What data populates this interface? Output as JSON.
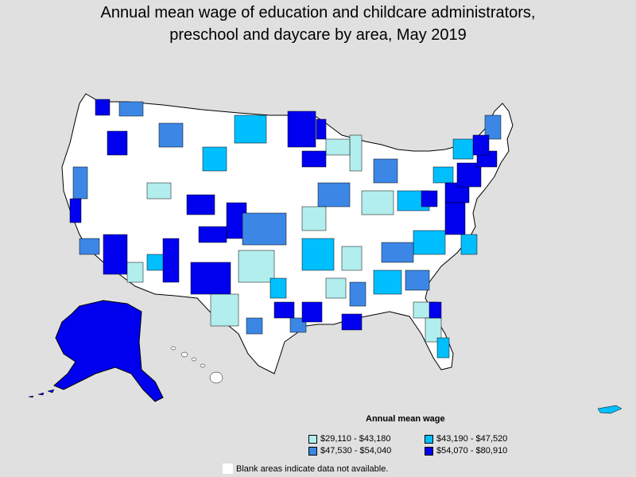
{
  "title": {
    "line1": "Annual mean wage of education and childcare administrators,",
    "line2": "preschool and daycare by area, May 2019"
  },
  "legend": {
    "title": "Annual mean wage",
    "items": [
      {
        "label": "$29,110 - $43,180",
        "color": "#b3eeee"
      },
      {
        "label": "$43,190 - $47,520",
        "color": "#00bfff"
      },
      {
        "label": "$47,530 - $54,040",
        "color": "#3c87e6"
      },
      {
        "label": "$54,070 - $80,910",
        "color": "#0000ee"
      }
    ]
  },
  "note": "Blank areas indicate data not available.",
  "colors": {
    "background": "#e0e0e0",
    "blank": "#ffffff",
    "border": "#000000"
  }
}
